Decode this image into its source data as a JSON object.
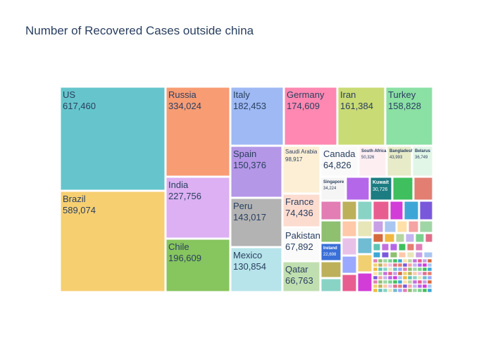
{
  "chart_data": {
    "type": "treemap",
    "title": "Number of Recovered Cases outside china",
    "palette": [
      "#66c5cc",
      "#f6cf71",
      "#f89c74",
      "#dcb0f2",
      "#87c55f",
      "#9eb9f3",
      "#fe88b1",
      "#c9db74",
      "#8be0a4",
      "#b497e7",
      "#b3b3b3",
      "#b7e4ea",
      "#fcefd5",
      "#fddcd0",
      "#fafafa",
      "#c0dfb0",
      "#fdeef2",
      "#e8ebc8",
      "#e2f6e7",
      "#cce9ad",
      "#303030"
    ],
    "items": [
      {
        "name": "US",
        "value": "617,460",
        "color": "#66c5cc"
      },
      {
        "name": "Brazil",
        "value": "589,074",
        "color": "#f6cf71"
      },
      {
        "name": "Russia",
        "value": "334,024",
        "color": "#f89c74"
      },
      {
        "name": "India",
        "value": "227,756",
        "color": "#dcb0f2"
      },
      {
        "name": "Chile",
        "value": "196,609",
        "color": "#87c55f"
      },
      {
        "name": "Italy",
        "value": "182,453",
        "color": "#9eb9f3"
      },
      {
        "name": "Germany",
        "value": "174,609",
        "color": "#fe88b1"
      },
      {
        "name": "Iran",
        "value": "161,384",
        "color": "#c9db74"
      },
      {
        "name": "Turkey",
        "value": "158,828",
        "color": "#8be0a4"
      },
      {
        "name": "Spain",
        "value": "150,376",
        "color": "#b497e7"
      },
      {
        "name": "Peru",
        "value": "143,017",
        "color": "#b3b3b3"
      },
      {
        "name": "Mexico",
        "value": "130,854",
        "color": "#b7e4ea"
      },
      {
        "name": "Saudi Arabia",
        "value": "98,917",
        "color": "#fcefd5"
      },
      {
        "name": "France",
        "value": "74,436",
        "color": "#fddcd0"
      },
      {
        "name": "Pakistan",
        "value": "67,892",
        "color": "#fafafa"
      },
      {
        "name": "Qatar",
        "value": "66,763",
        "color": "#c0dfb0"
      },
      {
        "name": "Canada",
        "value": "64,826",
        "color": "#fafafa"
      },
      {
        "name": "South Africa",
        "value": "50,326",
        "color": "#fdeef2"
      },
      {
        "name": "Bangladesh",
        "value": "43,993",
        "color": "#e8ebc8"
      },
      {
        "name": "Belarus",
        "value": "36,749",
        "color": "#e2f6e7"
      },
      {
        "name": "Singapore",
        "value": "34,224",
        "color": "#f5f5f5"
      },
      {
        "name": "Kuwait",
        "value": "30,726",
        "color": "#1d7c82"
      },
      {
        "name": "Ireland",
        "value": "22,698",
        "color": "#3a6fd8"
      }
    ],
    "small_tile_colors": [
      "#b467e8",
      "#3fbf5e",
      "#e27e72",
      "#e27eb4",
      "#bdb05b",
      "#89d3c5",
      "#e85d8f",
      "#d23cd7",
      "#3ea6d7",
      "#7a58db",
      "#8ec070",
      "#ffc8a8",
      "#e6e6b8",
      "#c7a0e6",
      "#a9c6f0",
      "#ffe0a8",
      "#f5a3a3",
      "#9fd6a5",
      "#e8c1e8",
      "#70bcd3",
      "#d66a3f",
      "#f0b841",
      "#b5d6a0",
      "#c4b5f0",
      "#7ad18f",
      "#e06e88",
      "#9aa8ff",
      "#f0d070",
      "#5ec4b5",
      "#c36fdc"
    ]
  }
}
